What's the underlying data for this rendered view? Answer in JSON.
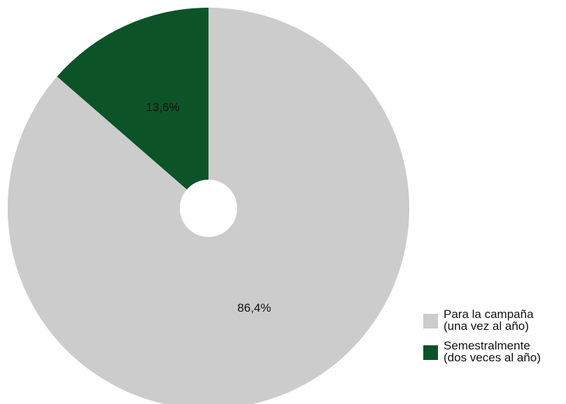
{
  "chart_data": {
    "type": "pie",
    "donut": true,
    "start_angle_deg": 0,
    "direction": "clockwise",
    "slices": [
      {
        "value": 86.4,
        "label": "86,4%",
        "legend_lines": [
          "Para la campaña",
          "(una vez al año)"
        ],
        "color": "#cccccc"
      },
      {
        "value": 13.6,
        "label": "13,6%",
        "legend_lines": [
          "Semestralmente",
          "(dos veces al año)"
        ],
        "color": "#0c5428"
      }
    ],
    "legend_placement": "bottom-right"
  }
}
